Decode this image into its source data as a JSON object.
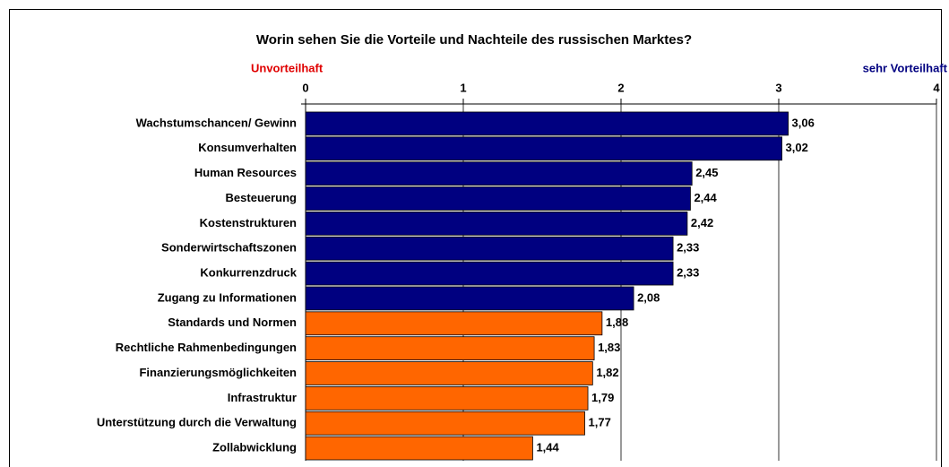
{
  "chart_data": {
    "type": "hbar",
    "title": "Worin sehen Sie die Vorteile  und Nachteile des russischen Marktes?",
    "annotations": {
      "left": "Unvorteilhaft",
      "right": "sehr Vorteilhaft"
    },
    "annotation_colors": {
      "left": "#e00000",
      "right": "#000080"
    },
    "categories": [
      "Wachstumschancen/ Gewinn",
      "Konsumverhalten",
      "Human Resources",
      "Besteuerung",
      "Kostenstrukturen",
      "Sonderwirtschaftszonen",
      "Konkurrenzdruck",
      "Zugang zu Informationen",
      "Standards und Normen",
      "Rechtliche Rahmenbedingungen",
      "Finanzierungsmöglichkeiten",
      "Infrastruktur",
      "Unterstützung durch die Verwaltung",
      "Zollabwicklung"
    ],
    "values": [
      3.06,
      3.02,
      2.45,
      2.44,
      2.42,
      2.33,
      2.33,
      2.08,
      1.88,
      1.83,
      1.82,
      1.79,
      1.77,
      1.44
    ],
    "value_labels": [
      "3,06",
      "3,02",
      "2,45",
      "2,44",
      "2,42",
      "2,33",
      "2,33",
      "2,08",
      "1,88",
      "1,83",
      "1,82",
      "1,79",
      "1,77",
      "1,44"
    ],
    "colors": [
      "#000080",
      "#000080",
      "#000080",
      "#000080",
      "#000080",
      "#000080",
      "#000080",
      "#000080",
      "#ff6600",
      "#ff6600",
      "#ff6600",
      "#ff6600",
      "#ff6600",
      "#ff6600"
    ],
    "xlim": [
      0,
      4
    ],
    "xticks": [
      0,
      1,
      2,
      3,
      4
    ],
    "grid": true
  }
}
